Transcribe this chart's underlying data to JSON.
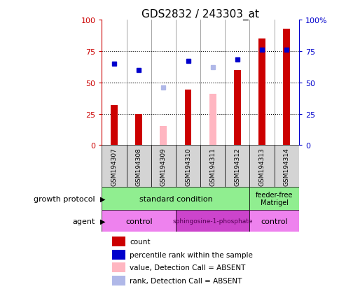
{
  "title": "GDS2832 / 243303_at",
  "samples": [
    "GSM194307",
    "GSM194308",
    "GSM194309",
    "GSM194310",
    "GSM194311",
    "GSM194312",
    "GSM194313",
    "GSM194314"
  ],
  "count_values": [
    32,
    25,
    null,
    44,
    null,
    60,
    85,
    93
  ],
  "count_absent_values": [
    null,
    null,
    15,
    null,
    41,
    null,
    null,
    null
  ],
  "percentile_values": [
    65,
    60,
    null,
    67,
    null,
    68,
    76,
    76
  ],
  "percentile_absent_values": [
    null,
    null,
    46,
    null,
    62,
    null,
    null,
    null
  ],
  "count_color": "#cc0000",
  "count_absent_color": "#ffb6c1",
  "percentile_color": "#0000cc",
  "percentile_absent_color": "#b0b8e8",
  "ylim": [
    0,
    100
  ],
  "dotted_lines": [
    25,
    50,
    75
  ],
  "gp_color": "#90ee90",
  "agent_light_color": "#ee82ee",
  "agent_dark_color": "#cc44cc",
  "legend_items": [
    {
      "label": "count",
      "color": "#cc0000"
    },
    {
      "label": "percentile rank within the sample",
      "color": "#0000cc"
    },
    {
      "label": "value, Detection Call = ABSENT",
      "color": "#ffb6c1"
    },
    {
      "label": "rank, Detection Call = ABSENT",
      "color": "#b0b8e8"
    }
  ],
  "title_fontsize": 11,
  "bar_width": 0.4,
  "growth_label": "growth protocol",
  "agent_label": "agent",
  "sample_bg": "#d4d4d4"
}
